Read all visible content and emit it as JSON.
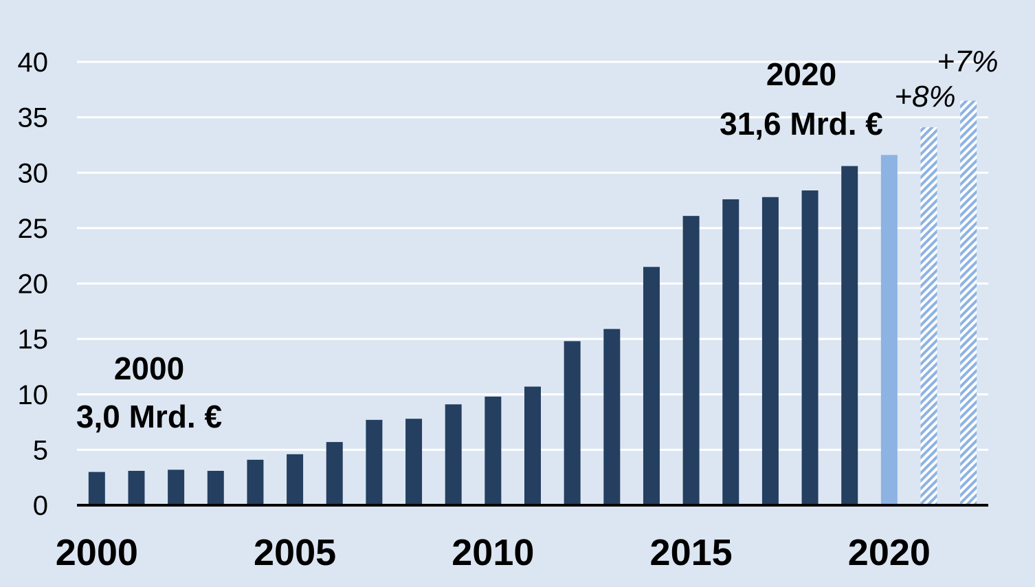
{
  "chart_data": {
    "type": "bar",
    "x": [
      2000,
      2001,
      2002,
      2003,
      2004,
      2005,
      2006,
      2007,
      2008,
      2009,
      2010,
      2011,
      2012,
      2013,
      2014,
      2015,
      2016,
      2017,
      2018,
      2019,
      2020,
      2021,
      2022
    ],
    "values": [
      3.0,
      3.1,
      3.2,
      3.1,
      4.1,
      4.6,
      5.7,
      7.7,
      7.8,
      9.1,
      9.8,
      10.7,
      14.8,
      15.9,
      21.5,
      26.1,
      27.6,
      27.8,
      28.4,
      30.6,
      31.6,
      34.1,
      36.5
    ],
    "kind": [
      "actual",
      "actual",
      "actual",
      "actual",
      "actual",
      "actual",
      "actual",
      "actual",
      "actual",
      "actual",
      "actual",
      "actual",
      "actual",
      "actual",
      "actual",
      "actual",
      "actual",
      "actual",
      "actual",
      "actual",
      "highlight",
      "forecast",
      "forecast"
    ],
    "ylim": [
      0,
      40
    ],
    "yticks": [
      "0",
      "5",
      "10",
      "15",
      "20",
      "25",
      "30",
      "35",
      "40"
    ],
    "xtick_labels": [
      {
        "year": 2000,
        "label": "2000"
      },
      {
        "year": 2005,
        "label": "2005"
      },
      {
        "year": 2010,
        "label": "2010"
      },
      {
        "year": 2015,
        "label": "2015"
      },
      {
        "year": 2020,
        "label": "2020"
      }
    ],
    "grid": true,
    "annotations": {
      "start_year": "2000",
      "start_value": "3,0 Mrd. €",
      "end_year": "2020",
      "end_value": "31,6 Mrd. €",
      "growth_2021": "+8%",
      "growth_2022": "+7%"
    },
    "colors": {
      "background": "#dce6f2",
      "actual": "#243f60",
      "highlight": "#8db3e2",
      "forecast_stripe": "#8db3e2",
      "grid": "#ffffff",
      "axis": "#000000"
    }
  }
}
